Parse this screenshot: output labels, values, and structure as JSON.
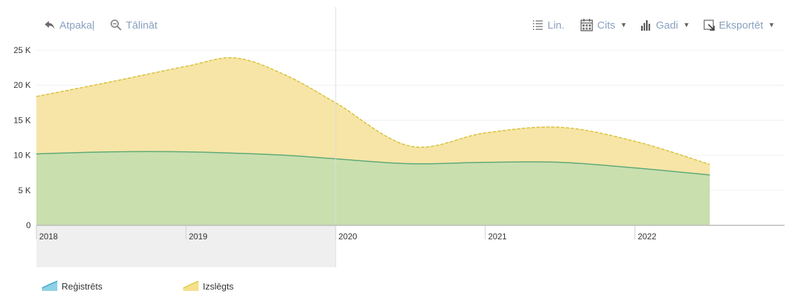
{
  "toolbar": {
    "back_label": "Atpakaļ",
    "zoom_out_label": "Tālināt",
    "line_label": "Lin.",
    "other_label": "Cits",
    "years_label": "Gadi",
    "export_label": "Eksportēt"
  },
  "icons": {
    "back": "undo-arrow-icon",
    "zoom_out": "zoom-out-icon",
    "line": "list-lines-icon",
    "other": "calendar-icon",
    "years": "bar-chart-icon",
    "export": "export-icon"
  },
  "chart_data": {
    "type": "area",
    "stacked": true,
    "x_labels": [
      "2018",
      "2019",
      "2020",
      "2021",
      "2022"
    ],
    "x": [
      2018.0,
      2018.5,
      2019.0,
      2019.33,
      2019.67,
      2020.0,
      2020.5,
      2021.0,
      2021.5,
      2022.0,
      2022.5
    ],
    "y_ticks": [
      "0",
      "5 K",
      "10 K",
      "15 K",
      "20 K",
      "25 K"
    ],
    "ylim": [
      0,
      25000
    ],
    "grid": true,
    "legend_position": "bottom-left",
    "series": [
      {
        "name": "Reģistrēts",
        "color": "#c9dfae",
        "legend_color": "#8fd1e6",
        "line_color": "#5aa878",
        "values": [
          10200,
          10500,
          10500,
          10300,
          10000,
          9500,
          8800,
          9000,
          9000,
          8200,
          7200
        ]
      },
      {
        "name": "Izslēgts",
        "color": "#f6e5a6",
        "legend_color": "#f3e18c",
        "line_color": "#d9c13a",
        "values": [
          8200,
          10000,
          12200,
          13600,
          11400,
          8000,
          2500,
          4200,
          5000,
          3800,
          1500
        ]
      }
    ],
    "highlight_range": [
      "2018",
      "2020"
    ]
  }
}
